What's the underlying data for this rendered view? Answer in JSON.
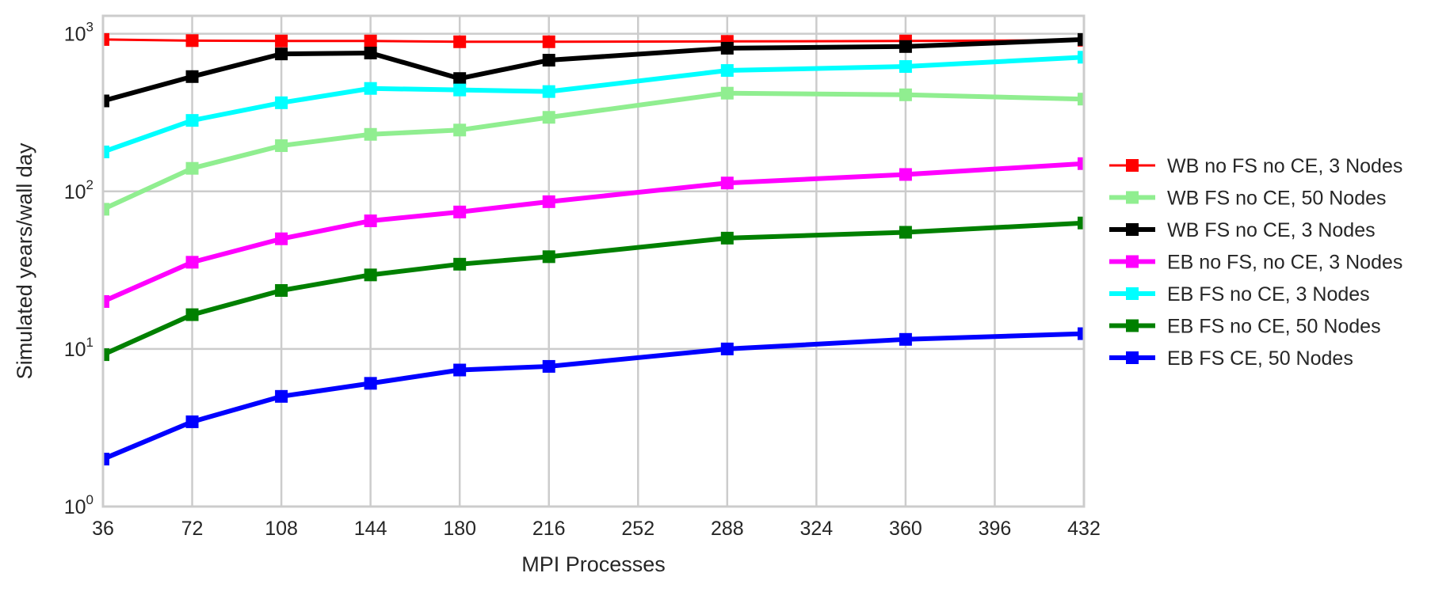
{
  "chart_data": {
    "type": "line",
    "xlabel": "MPI Processes",
    "ylabel": "Simulated years/wall day",
    "xlim": [
      36,
      432
    ],
    "ylim": [
      1,
      1300
    ],
    "yscale": "log",
    "grid": true,
    "legend_position": "right, outside plot",
    "x_ticks": [
      36,
      72,
      108,
      144,
      180,
      216,
      252,
      288,
      324,
      360,
      396,
      432
    ],
    "y_ticks": [
      {
        "value": 1,
        "base": "10",
        "exp": "0"
      },
      {
        "value": 10,
        "base": "10",
        "exp": "1"
      },
      {
        "value": 100,
        "base": "10",
        "exp": "2"
      },
      {
        "value": 1000,
        "base": "10",
        "exp": "3"
      }
    ],
    "x": [
      36,
      72,
      108,
      144,
      180,
      216,
      288,
      360,
      432
    ],
    "series": [
      {
        "name": "WB no FS no CE, 3 Nodes",
        "color": "#ff0000",
        "width": 3,
        "values": [
          920,
          905,
          900,
          900,
          890,
          890,
          895,
          900,
          910
        ]
      },
      {
        "name": "WB FS no CE, 50 Nodes",
        "color": "#90ee90",
        "width": 6,
        "values": [
          77,
          140,
          195,
          230,
          245,
          295,
          420,
          410,
          385
        ]
      },
      {
        "name": "WB FS no CE, 3 Nodes",
        "color": "#000000",
        "width": 6,
        "values": [
          375,
          535,
          745,
          755,
          520,
          680,
          810,
          830,
          920
        ]
      },
      {
        "name": "EB no FS, no CE, 3 Nodes",
        "color": "#ff00ff",
        "width": 6,
        "values": [
          20,
          35.5,
          50,
          65,
          74,
          86,
          113,
          128,
          150
        ]
      },
      {
        "name": "EB FS no CE, 3 Nodes",
        "color": "#00ffff",
        "width": 6,
        "values": [
          178,
          282,
          365,
          450,
          440,
          430,
          585,
          620,
          710
        ]
      },
      {
        "name": "EB FS no CE, 50 Nodes",
        "color": "#008000",
        "width": 6,
        "values": [
          9.2,
          16.5,
          23.5,
          29.5,
          34.5,
          38.5,
          50.5,
          55,
          63
        ]
      },
      {
        "name": "EB FS CE, 50 Nodes",
        "color": "#0000ff",
        "width": 6,
        "values": [
          2.0,
          3.45,
          5.0,
          6.05,
          7.35,
          7.75,
          10.0,
          11.5,
          12.5
        ]
      }
    ]
  }
}
